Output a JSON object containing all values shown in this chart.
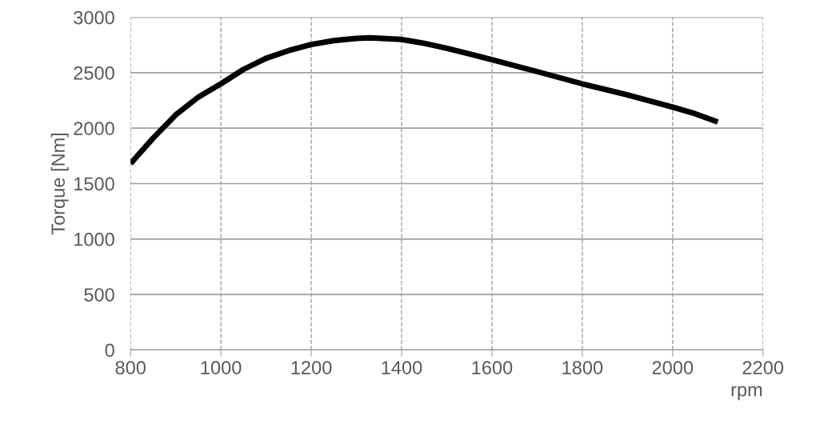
{
  "chart_data": {
    "type": "line",
    "xlabel": "rpm",
    "ylabel": "Torque [Nm]",
    "x": [
      800,
      850,
      900,
      950,
      1000,
      1050,
      1100,
      1150,
      1200,
      1250,
      1300,
      1330,
      1400,
      1450,
      1500,
      1550,
      1600,
      1700,
      1800,
      1900,
      2000,
      2050,
      2100
    ],
    "series": [
      {
        "color": "#000000",
        "values": [
          1680,
          1910,
          2120,
          2280,
          2400,
          2530,
          2630,
          2700,
          2755,
          2790,
          2810,
          2815,
          2800,
          2765,
          2720,
          2670,
          2617,
          2510,
          2400,
          2300,
          2190,
          2130,
          2055
        ]
      }
    ],
    "xlim": [
      800,
      2200
    ],
    "ylim": [
      0,
      3000
    ],
    "xticks": [
      800,
      1000,
      1200,
      1400,
      1600,
      1800,
      2000,
      2200
    ],
    "yticks": [
      0,
      500,
      1000,
      1500,
      2000,
      2500,
      3000
    ],
    "grid": true,
    "legend": false,
    "marker": "none",
    "line_style": "solid"
  }
}
